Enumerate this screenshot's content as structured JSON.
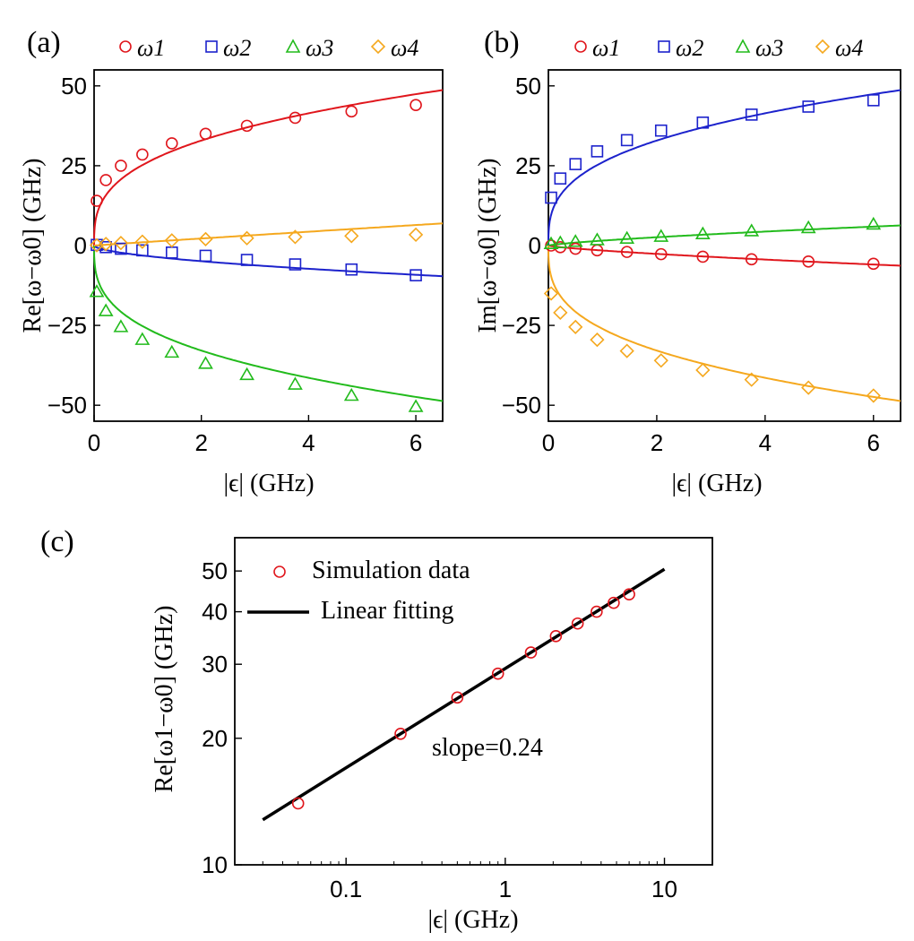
{
  "colors": {
    "w1": "#e0161c",
    "w2": "#1c22cc",
    "w3": "#22bb1c",
    "w4": "#f5a81e",
    "fit": "#000000",
    "axis": "#000000"
  },
  "chart_data": [
    {
      "id": "a",
      "panel_label": "(a)",
      "type": "scatter+line",
      "xlabel": "|ϵ| (GHz)",
      "ylabel": "Re[ω−ω0] (GHz)",
      "xlim": [
        0,
        6.5
      ],
      "ylim": [
        -55,
        55
      ],
      "xticks": [
        0,
        2,
        4,
        6
      ],
      "yticks": [
        50,
        25,
        0,
        -25,
        -50
      ],
      "x": [
        0.05,
        0.22,
        0.5,
        0.9,
        1.45,
        2.08,
        2.85,
        3.75,
        4.8,
        6.0
      ],
      "series": [
        {
          "name": "ω1",
          "marker": "circle",
          "color_key": "w1",
          "values": [
            14,
            20.5,
            25,
            28.5,
            32,
            35,
            37.5,
            40,
            42,
            44
          ],
          "fit": {
            "a": 26.1,
            "p": 0.333
          }
        },
        {
          "name": "ω2",
          "marker": "square",
          "color_key": "w2",
          "values": [
            0.2,
            -0.5,
            -1,
            -1.5,
            -2.2,
            -3.2,
            -4.5,
            -5.9,
            -7.5,
            -9.3
          ],
          "fit": {
            "a": -3.3,
            "p": 0.57
          }
        },
        {
          "name": "ω3",
          "marker": "triangle",
          "color_key": "w3",
          "values": [
            -14.5,
            -20.5,
            -25.5,
            -29.5,
            -33.5,
            -37,
            -40.5,
            -43.5,
            -47,
            -50.5
          ],
          "fit": {
            "a": -26.1,
            "p": 0.333
          }
        },
        {
          "name": "ω4",
          "marker": "diamond",
          "color_key": "w4",
          "values": [
            0.1,
            0.5,
            0.8,
            1.2,
            1.6,
            2.0,
            2.3,
            2.7,
            3.0,
            3.4
          ],
          "fit": {
            "a": 1.13,
            "p": 0.97
          }
        }
      ]
    },
    {
      "id": "b",
      "panel_label": "(b)",
      "type": "scatter+line",
      "xlabel": "|ϵ| (GHz)",
      "ylabel": "Im[ω−ω0] (GHz)",
      "xlim": [
        0,
        6.5
      ],
      "ylim": [
        -55,
        55
      ],
      "xticks": [
        0,
        2,
        4,
        6
      ],
      "yticks": [
        50,
        25,
        0,
        -25,
        -50
      ],
      "x": [
        0.05,
        0.22,
        0.5,
        0.9,
        1.45,
        2.08,
        2.85,
        3.75,
        4.8,
        6.0
      ],
      "series": [
        {
          "name": "ω1",
          "marker": "circle",
          "color_key": "w1",
          "values": [
            0,
            -0.5,
            -1,
            -1.5,
            -2,
            -2.7,
            -3.5,
            -4.3,
            -5,
            -5.7
          ],
          "fit": {
            "a": -1.55,
            "p": 0.75
          }
        },
        {
          "name": "ω2",
          "marker": "square",
          "color_key": "w2",
          "values": [
            15,
            21,
            25.5,
            29.5,
            33,
            36,
            38.5,
            41,
            43.5,
            45.5
          ],
          "fit": {
            "a": 26.1,
            "p": 0.333
          }
        },
        {
          "name": "ω3",
          "marker": "triangle",
          "color_key": "w3",
          "values": [
            0.5,
            0.8,
            1.2,
            1.7,
            2.2,
            2.8,
            3.6,
            4.5,
            5.5,
            6.6
          ],
          "fit": {
            "a": 1.55,
            "p": 0.75
          }
        },
        {
          "name": "ω4",
          "marker": "diamond",
          "color_key": "w4",
          "values": [
            -15,
            -21,
            -25.5,
            -29.5,
            -33,
            -36,
            -39,
            -42,
            -44.5,
            -47
          ],
          "fit": {
            "a": -26.1,
            "p": 0.333
          }
        }
      ]
    },
    {
      "id": "c",
      "panel_label": "(c)",
      "type": "scatter+line (log-log)",
      "xlabel": "|ϵ| (GHz)",
      "ylabel": "Re[ω1−ω0] (GHz)",
      "xscale": "log",
      "yscale": "log",
      "xlim": [
        0.02,
        20
      ],
      "ylim": [
        10,
        60
      ],
      "xticks": [
        {
          "v": 0.1,
          "label": "0.1"
        },
        {
          "v": 1,
          "label": "1"
        },
        {
          "v": 10,
          "label": "10"
        }
      ],
      "yticks": [
        {
          "v": 10,
          "label": "10"
        },
        {
          "v": 20,
          "label": "20"
        },
        {
          "v": 30,
          "label": "30"
        },
        {
          "v": 40,
          "label": "40"
        },
        {
          "v": 50,
          "label": "50"
        }
      ],
      "x": [
        0.05,
        0.22,
        0.5,
        0.9,
        1.45,
        2.08,
        2.85,
        3.75,
        4.8,
        6.0
      ],
      "simulation": [
        14,
        20.5,
        25,
        28.5,
        32,
        35,
        37.5,
        40,
        42,
        44
      ],
      "fit_line": {
        "x": [
          0.03,
          10
        ],
        "y": [
          12.8,
          50.5
        ]
      },
      "legend": [
        "Simulation data",
        "Linear fitting"
      ],
      "annotation": "slope=0.24"
    }
  ]
}
